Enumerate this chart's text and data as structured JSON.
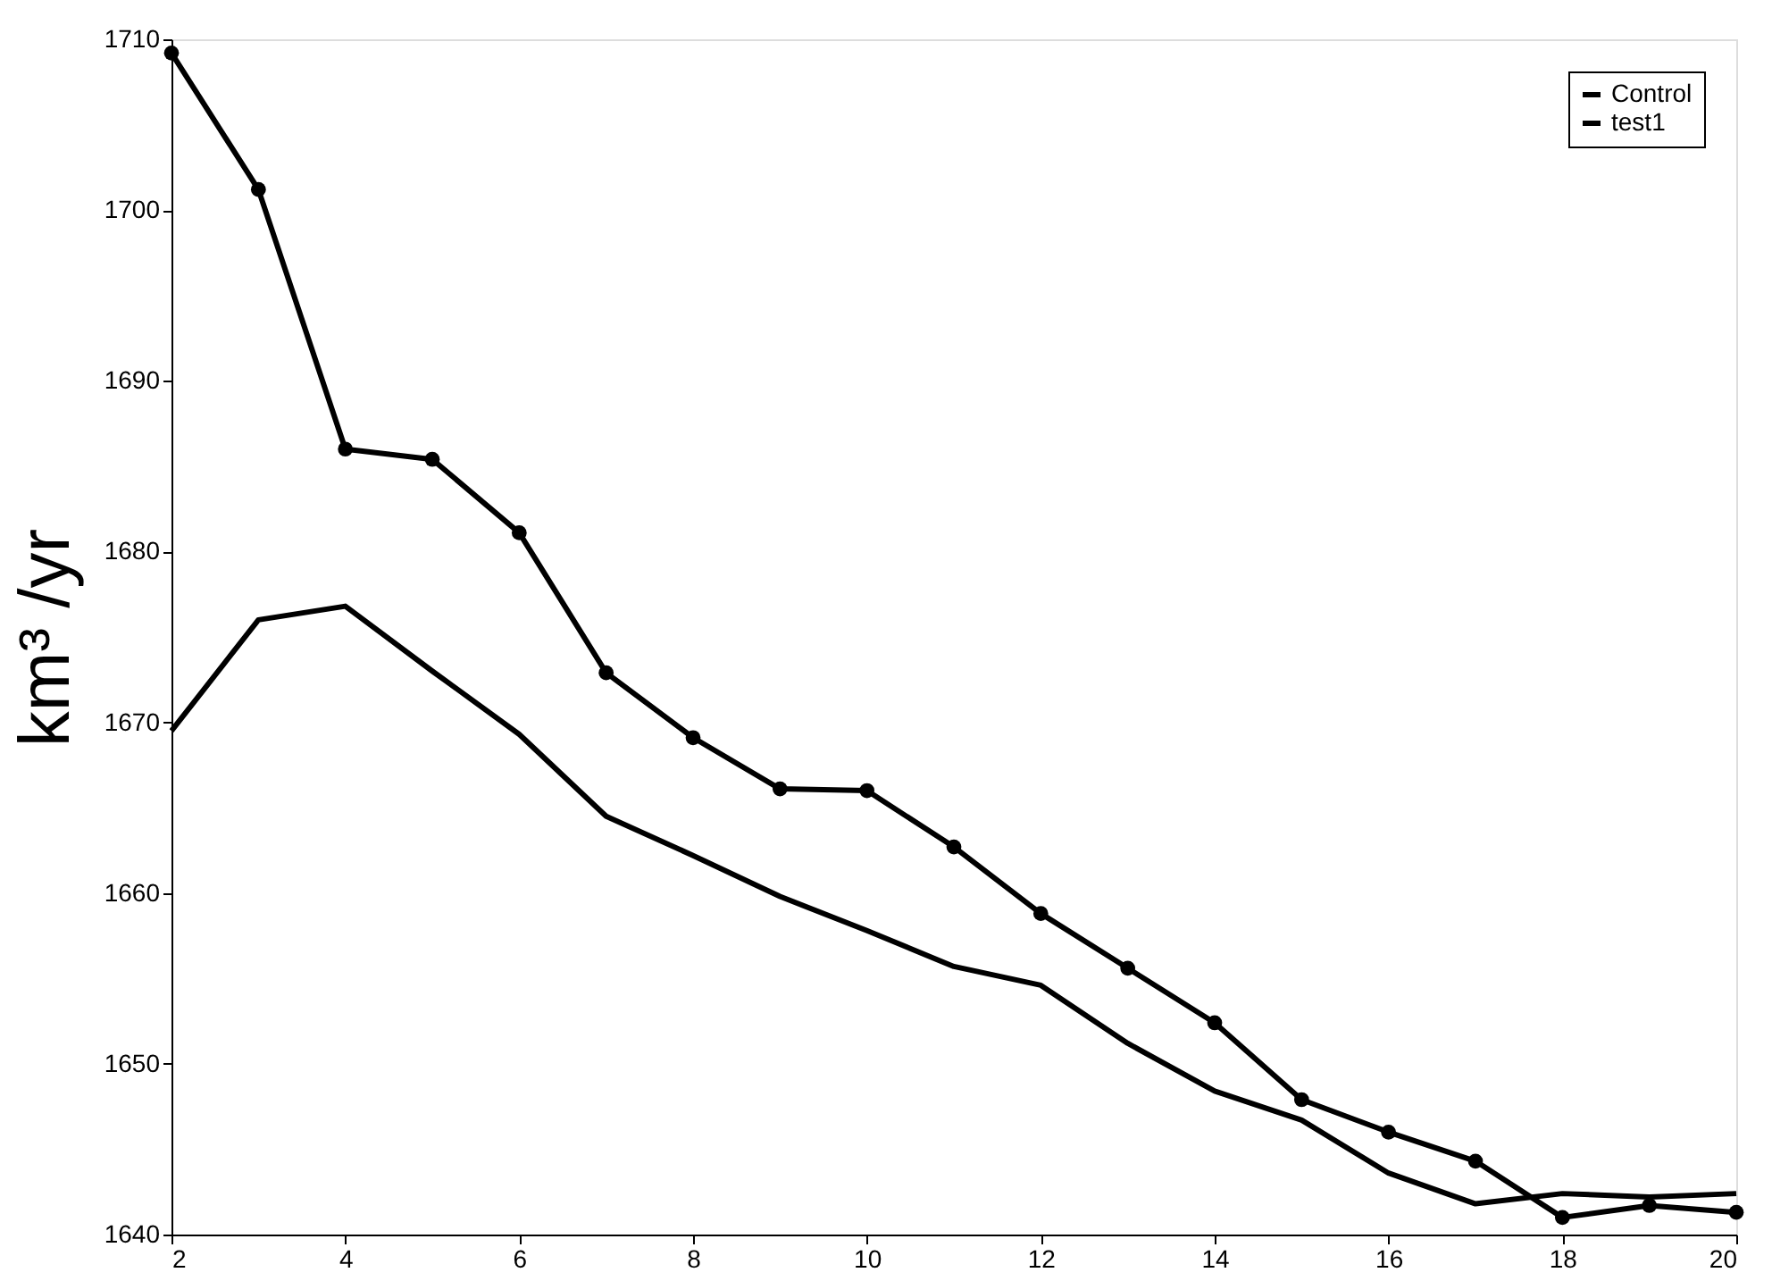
{
  "chart_data": {
    "type": "line",
    "ylabel": "km³ /yr",
    "x": [
      2,
      3,
      4,
      5,
      6,
      7,
      8,
      9,
      10,
      11,
      12,
      13,
      14,
      15,
      16,
      17,
      18,
      19,
      20
    ],
    "xlim": [
      2,
      20
    ],
    "xticks": [
      2,
      4,
      6,
      8,
      10,
      12,
      14,
      16,
      18,
      20
    ],
    "ylim": [
      1640,
      1710
    ],
    "yticks": [
      1640,
      1650,
      1660,
      1670,
      1680,
      1690,
      1700,
      1710
    ],
    "grid": false,
    "legend": "top right",
    "line_style": "solid",
    "series": [
      {
        "name": "Control",
        "color": "#000000",
        "marker": "none",
        "values": [
          1669.5,
          1676,
          1676.8,
          1673,
          1669.3,
          1664.5,
          1662.2,
          1659.8,
          1657.8,
          1655.7,
          1654.6,
          1651.2,
          1648.4,
          1646.7,
          1643.6,
          1641.8,
          1642.4,
          1642.2,
          1642.4
        ]
      },
      {
        "name": "test1",
        "color": "#000000",
        "marker": "circle",
        "values": [
          1709.2,
          1701.2,
          1686,
          1685.4,
          1681.1,
          1672.9,
          1669.1,
          1666.1,
          1666,
          1662.7,
          1658.8,
          1655.6,
          1652.4,
          1647.9,
          1646,
          1644.3,
          1641,
          1641.7,
          1641.3
        ]
      }
    ]
  }
}
